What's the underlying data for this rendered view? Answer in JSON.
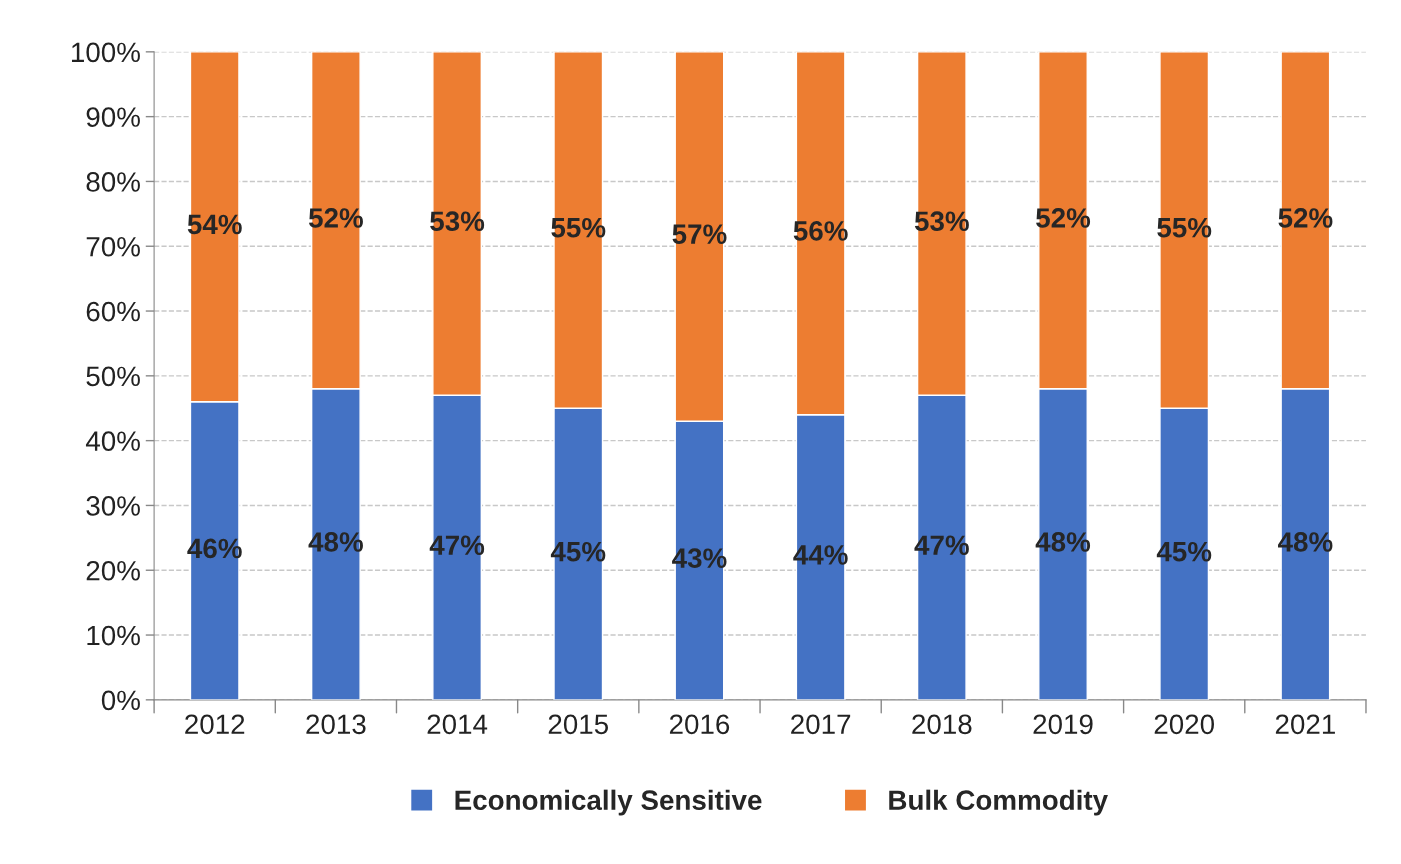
{
  "chart_data": {
    "type": "bar",
    "stacked": true,
    "categories": [
      "2012",
      "2013",
      "2014",
      "2015",
      "2016",
      "2017",
      "2018",
      "2019",
      "2020",
      "2021"
    ],
    "series": [
      {
        "name": "Economically Sensitive",
        "color": "#4472c4",
        "values": [
          46,
          48,
          47,
          45,
          43,
          44,
          47,
          48,
          45,
          48
        ],
        "value_labels": [
          "46%",
          "48%",
          "47%",
          "45%",
          "43%",
          "44%",
          "47%",
          "48%",
          "45%",
          "48%"
        ]
      },
      {
        "name": "Bulk Commodity",
        "color": "#ed7d31",
        "values": [
          54,
          52,
          53,
          55,
          57,
          56,
          53,
          52,
          55,
          52
        ],
        "value_labels": [
          "54%",
          "52%",
          "53%",
          "55%",
          "57%",
          "56%",
          "53%",
          "52%",
          "55%",
          "52%"
        ]
      }
    ],
    "ylim": [
      0,
      100
    ],
    "yticks": [
      {
        "value": 0,
        "label": "0%"
      },
      {
        "value": 10,
        "label": "10%"
      },
      {
        "value": 20,
        "label": "20%"
      },
      {
        "value": 30,
        "label": "30%"
      },
      {
        "value": 40,
        "label": "40%"
      },
      {
        "value": 50,
        "label": "50%"
      },
      {
        "value": 60,
        "label": "60%"
      },
      {
        "value": 70,
        "label": "70%"
      },
      {
        "value": 80,
        "label": "80%"
      },
      {
        "value": 90,
        "label": "90%"
      },
      {
        "value": 100,
        "label": "100%"
      }
    ],
    "grid": "y",
    "legend": "bottom"
  }
}
